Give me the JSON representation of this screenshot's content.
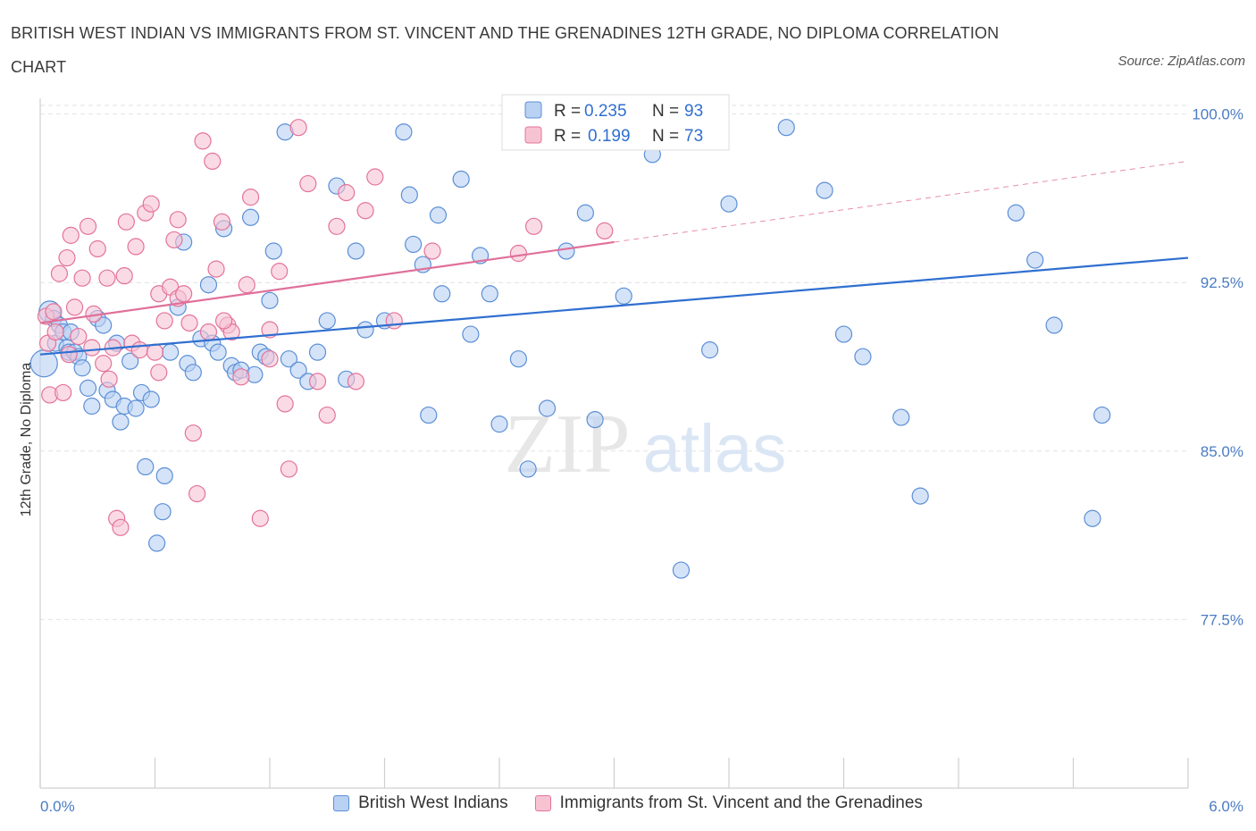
{
  "title": "BRITISH WEST INDIAN VS IMMIGRANTS FROM ST. VINCENT AND THE GRENADINES 12TH GRADE, NO DIPLOMA CORRELATION CHART",
  "source": "Source: ZipAtlas.com",
  "watermark": {
    "zip": "ZIP",
    "atlas": "atlas"
  },
  "colors": {
    "blue": "#5b8fd6",
    "blue_fill": "#b9d1f3",
    "pink": "#e4739a",
    "pink_fill": "#f7c3d3",
    "blue_line": "#2f6fd0",
    "pink_line": "#e0709a"
  },
  "chart_data": {
    "type": "scatter",
    "xlabel": "",
    "ylabel": "12th Grade, No Diploma",
    "xlim": [
      0,
      6
    ],
    "ylim": [
      70,
      100.7
    ],
    "x_tick_labels": [
      "0.0%",
      "6.0%"
    ],
    "y_ticks": [
      77.5,
      85.0,
      92.5,
      100.0
    ],
    "y_tick_labels": [
      "77.5%",
      "85.0%",
      "92.5%",
      "100.0%"
    ],
    "grid": true,
    "legend": {
      "position": "top-center",
      "rows": [
        {
          "r_label": "R =",
          "r_value": "0.235",
          "n_label": "N =",
          "n_value": "93"
        },
        {
          "r_label": "R =",
          "r_value": "0.199",
          "n_label": "N =",
          "n_value": "73"
        }
      ]
    },
    "series": [
      {
        "name": "British West Indians",
        "color": "#5b8fd6",
        "trend": {
          "x": [
            0,
            6
          ],
          "y": [
            89.3,
            93.6
          ],
          "style": "solid"
        },
        "points": [
          [
            0.02,
            88.9
          ],
          [
            0.05,
            91.2
          ],
          [
            0.07,
            90.9
          ],
          [
            0.08,
            89.8
          ],
          [
            0.1,
            90.6
          ],
          [
            0.12,
            90.3
          ],
          [
            0.14,
            89.6
          ],
          [
            0.15,
            89.4
          ],
          [
            0.16,
            90.3
          ],
          [
            0.18,
            89.4
          ],
          [
            0.2,
            89.2
          ],
          [
            0.22,
            88.7
          ],
          [
            0.25,
            87.8
          ],
          [
            0.27,
            87.0
          ],
          [
            0.3,
            90.9
          ],
          [
            0.33,
            90.6
          ],
          [
            0.35,
            87.7
          ],
          [
            0.38,
            87.3
          ],
          [
            0.4,
            89.8
          ],
          [
            0.42,
            86.3
          ],
          [
            0.44,
            87.0
          ],
          [
            0.47,
            89.0
          ],
          [
            0.5,
            86.9
          ],
          [
            0.53,
            87.6
          ],
          [
            0.55,
            84.3
          ],
          [
            0.58,
            87.3
          ],
          [
            0.61,
            80.9
          ],
          [
            0.64,
            82.3
          ],
          [
            0.65,
            83.9
          ],
          [
            0.68,
            89.4
          ],
          [
            0.72,
            91.4
          ],
          [
            0.75,
            94.3
          ],
          [
            0.77,
            88.9
          ],
          [
            0.8,
            88.5
          ],
          [
            0.84,
            90.0
          ],
          [
            0.88,
            92.4
          ],
          [
            0.9,
            89.8
          ],
          [
            0.93,
            89.4
          ],
          [
            0.96,
            94.9
          ],
          [
            1.0,
            88.8
          ],
          [
            1.02,
            88.5
          ],
          [
            1.05,
            88.6
          ],
          [
            1.1,
            95.4
          ],
          [
            1.15,
            89.4
          ],
          [
            1.18,
            89.2
          ],
          [
            1.2,
            91.7
          ],
          [
            1.22,
            93.9
          ],
          [
            1.28,
            99.2
          ],
          [
            1.3,
            89.1
          ],
          [
            1.35,
            88.6
          ],
          [
            1.4,
            88.1
          ],
          [
            1.45,
            89.4
          ],
          [
            1.5,
            90.8
          ],
          [
            1.55,
            96.8
          ],
          [
            1.6,
            88.2
          ],
          [
            1.65,
            93.9
          ],
          [
            1.7,
            90.4
          ],
          [
            1.8,
            90.8
          ],
          [
            1.9,
            99.2
          ],
          [
            1.93,
            96.4
          ],
          [
            1.95,
            94.2
          ],
          [
            2.0,
            93.3
          ],
          [
            2.03,
            86.6
          ],
          [
            2.08,
            95.5
          ],
          [
            2.1,
            92.0
          ],
          [
            2.2,
            97.1
          ],
          [
            2.25,
            90.2
          ],
          [
            2.3,
            93.7
          ],
          [
            2.35,
            92.0
          ],
          [
            2.4,
            86.2
          ],
          [
            2.5,
            89.1
          ],
          [
            2.55,
            84.2
          ],
          [
            2.65,
            86.9
          ],
          [
            2.75,
            93.9
          ],
          [
            2.85,
            95.6
          ],
          [
            2.9,
            86.4
          ],
          [
            3.05,
            91.9
          ],
          [
            3.2,
            98.2
          ],
          [
            3.5,
            89.5
          ],
          [
            3.35,
            79.7
          ],
          [
            3.6,
            96.0
          ],
          [
            3.9,
            99.4
          ],
          [
            4.1,
            96.6
          ],
          [
            4.2,
            90.2
          ],
          [
            4.3,
            89.2
          ],
          [
            4.5,
            86.5
          ],
          [
            4.6,
            83.0
          ],
          [
            5.1,
            95.6
          ],
          [
            5.2,
            93.5
          ],
          [
            5.3,
            90.6
          ],
          [
            5.5,
            82.0
          ],
          [
            5.55,
            86.6
          ],
          [
            1.12,
            88.4
          ]
        ]
      },
      {
        "name": "Immigrants from St. Vincent and the Grenadines",
        "color": "#e4739a",
        "trend": {
          "x": [
            0,
            3.0
          ],
          "y": [
            90.7,
            94.3
          ],
          "style": "solid",
          "extend_x": [
            3.0,
            6.0
          ],
          "extend_y": [
            94.3,
            97.9
          ]
        },
        "points": [
          [
            0.03,
            91.0
          ],
          [
            0.04,
            89.8
          ],
          [
            0.05,
            87.5
          ],
          [
            0.07,
            91.2
          ],
          [
            0.08,
            90.3
          ],
          [
            0.1,
            92.9
          ],
          [
            0.12,
            87.6
          ],
          [
            0.14,
            93.6
          ],
          [
            0.16,
            94.6
          ],
          [
            0.18,
            91.4
          ],
          [
            0.2,
            90.1
          ],
          [
            0.22,
            92.7
          ],
          [
            0.25,
            95.0
          ],
          [
            0.27,
            89.6
          ],
          [
            0.3,
            94.0
          ],
          [
            0.33,
            88.9
          ],
          [
            0.35,
            92.7
          ],
          [
            0.38,
            89.6
          ],
          [
            0.4,
            82.0
          ],
          [
            0.42,
            81.6
          ],
          [
            0.45,
            95.2
          ],
          [
            0.48,
            89.8
          ],
          [
            0.5,
            94.1
          ],
          [
            0.52,
            89.5
          ],
          [
            0.55,
            95.6
          ],
          [
            0.58,
            96.0
          ],
          [
            0.6,
            89.4
          ],
          [
            0.62,
            92.0
          ],
          [
            0.65,
            90.8
          ],
          [
            0.68,
            92.3
          ],
          [
            0.7,
            94.4
          ],
          [
            0.72,
            91.8
          ],
          [
            0.75,
            92.0
          ],
          [
            0.78,
            90.7
          ],
          [
            0.8,
            85.8
          ],
          [
            0.82,
            83.1
          ],
          [
            0.85,
            98.8
          ],
          [
            0.88,
            90.3
          ],
          [
            0.9,
            97.9
          ],
          [
            0.92,
            93.1
          ],
          [
            0.95,
            95.2
          ],
          [
            0.98,
            90.6
          ],
          [
            1.0,
            90.3
          ],
          [
            1.05,
            88.3
          ],
          [
            1.08,
            92.4
          ],
          [
            1.1,
            96.3
          ],
          [
            1.15,
            82.0
          ],
          [
            1.2,
            90.4
          ],
          [
            1.25,
            93.0
          ],
          [
            1.28,
            87.1
          ],
          [
            1.3,
            84.2
          ],
          [
            1.35,
            99.4
          ],
          [
            1.4,
            96.9
          ],
          [
            1.45,
            88.1
          ],
          [
            1.5,
            86.6
          ],
          [
            1.55,
            95.0
          ],
          [
            1.6,
            96.5
          ],
          [
            1.65,
            88.1
          ],
          [
            1.7,
            95.7
          ],
          [
            1.75,
            97.2
          ],
          [
            1.85,
            90.8
          ],
          [
            2.05,
            93.9
          ],
          [
            2.5,
            93.8
          ],
          [
            2.58,
            95.0
          ],
          [
            2.95,
            94.8
          ],
          [
            0.36,
            88.2
          ],
          [
            0.15,
            89.3
          ],
          [
            0.28,
            91.1
          ],
          [
            0.62,
            88.5
          ],
          [
            0.44,
            92.8
          ],
          [
            0.72,
            95.3
          ],
          [
            0.96,
            90.8
          ],
          [
            1.2,
            89.1
          ]
        ]
      }
    ]
  }
}
